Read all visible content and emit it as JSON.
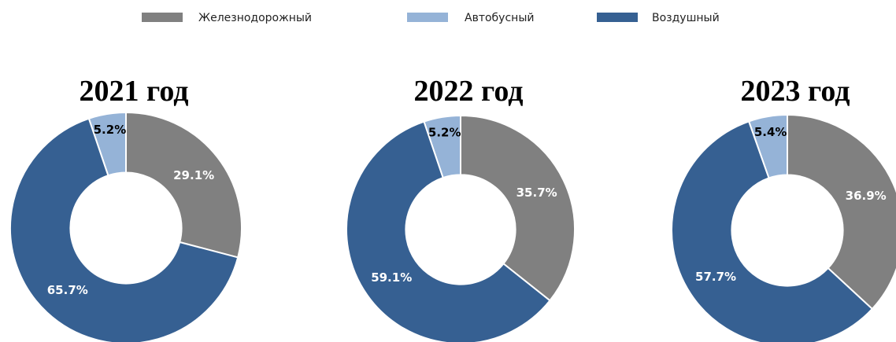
{
  "chart_data": [
    {
      "type": "pie",
      "title": "2021 год",
      "categories": [
        "Железнодорожный",
        "Автобусный",
        "Воздушный"
      ],
      "values": [
        29.1,
        5.2,
        65.7
      ],
      "value_labels": [
        "29.1%",
        "5.2%",
        "65.7%"
      ],
      "colors": [
        "#808080",
        "#95b3d7",
        "#366092"
      ],
      "donut": true,
      "legend": "top"
    },
    {
      "type": "pie",
      "title": "2022 год",
      "categories": [
        "Железнодорожный",
        "Автобусный",
        "Воздушный"
      ],
      "values": [
        35.7,
        5.2,
        59.1
      ],
      "value_labels": [
        "35.7%",
        "5.2%",
        "59.1%"
      ],
      "colors": [
        "#808080",
        "#95b3d7",
        "#366092"
      ],
      "donut": true,
      "legend": "top"
    },
    {
      "type": "pie",
      "title": "2023 год",
      "categories": [
        "Железнодорожный",
        "Автобусный",
        "Воздушный"
      ],
      "values": [
        36.9,
        5.4,
        57.7
      ],
      "value_labels": [
        "36.9%",
        "5.4%",
        "57.7%"
      ],
      "colors": [
        "#808080",
        "#95b3d7",
        "#366092"
      ],
      "donut": true,
      "legend": "top"
    }
  ]
}
